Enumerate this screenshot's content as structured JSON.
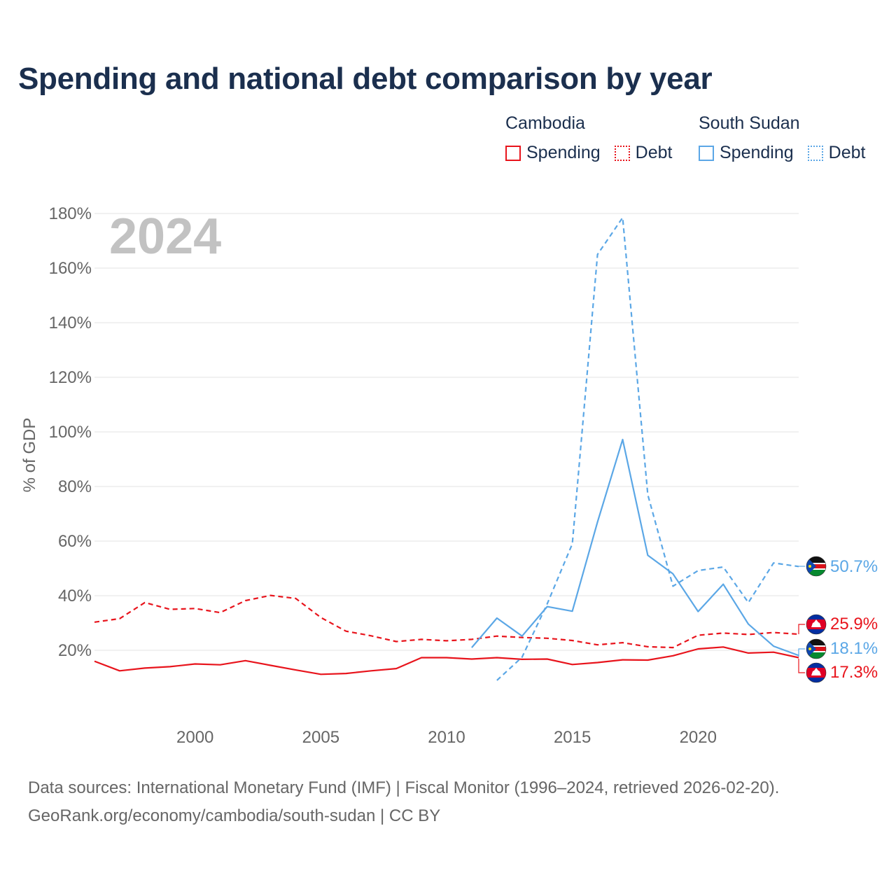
{
  "title": "Spending and national debt comparison by year",
  "legend": {
    "groups": [
      {
        "name": "Cambodia",
        "color": "#e8141c",
        "items": [
          "Spending",
          "Debt"
        ]
      },
      {
        "name": "South Sudan",
        "color": "#5ba7e6",
        "items": [
          "Spending",
          "Debt"
        ]
      }
    ]
  },
  "footer": {
    "sources": "Data sources: International Monetary Fund (IMF) | Fiscal Monitor (1996–2024, retrieved 2026-02-20).",
    "credit": "GeoRank.org/economy/cambodia/south-sudan | CC BY"
  },
  "chart_data": {
    "type": "line",
    "title": "Spending and national debt comparison by year",
    "year_label": "2024",
    "ylabel": "% of GDP",
    "xlabel": "",
    "xlim": [
      1996,
      2024
    ],
    "ylim": [
      0,
      180
    ],
    "x_ticks": [
      2000,
      2005,
      2010,
      2015,
      2020
    ],
    "y_ticks": [
      20,
      40,
      60,
      80,
      100,
      120,
      140,
      160,
      180
    ],
    "y_tick_labels": [
      "20%",
      "40%",
      "60%",
      "80%",
      "100%",
      "120%",
      "140%",
      "160%",
      "180%"
    ],
    "grid": true,
    "series": [
      {
        "name": "Cambodia Spending",
        "country": "Cambodia",
        "metric": "Spending",
        "color": "#e8141c",
        "dash": false,
        "x": [
          1996,
          1997,
          1998,
          1999,
          2000,
          2001,
          2002,
          2003,
          2004,
          2005,
          2006,
          2007,
          2008,
          2009,
          2010,
          2011,
          2012,
          2013,
          2014,
          2015,
          2016,
          2017,
          2018,
          2019,
          2020,
          2021,
          2022,
          2023,
          2024
        ],
        "values": [
          16.0,
          12.5,
          13.5,
          14.0,
          15.0,
          14.7,
          16.2,
          14.5,
          12.8,
          11.2,
          11.5,
          12.5,
          13.3,
          17.3,
          17.3,
          16.8,
          17.3,
          16.7,
          16.8,
          14.8,
          15.5,
          16.5,
          16.4,
          18.0,
          20.5,
          21.2,
          19.0,
          19.3,
          17.3
        ],
        "end_label": "17.3%"
      },
      {
        "name": "Cambodia Debt",
        "country": "Cambodia",
        "metric": "Debt",
        "color": "#e8141c",
        "dash": true,
        "x": [
          1996,
          1997,
          1998,
          1999,
          2000,
          2001,
          2002,
          2003,
          2004,
          2005,
          2006,
          2007,
          2008,
          2009,
          2010,
          2011,
          2012,
          2013,
          2014,
          2015,
          2016,
          2017,
          2018,
          2019,
          2020,
          2021,
          2022,
          2023,
          2024
        ],
        "values": [
          30.3,
          31.6,
          37.5,
          35.0,
          35.3,
          33.8,
          38.2,
          40.1,
          39.0,
          32.0,
          27.0,
          25.3,
          23.2,
          24.0,
          23.5,
          24.0,
          25.2,
          24.7,
          24.4,
          23.6,
          22.0,
          22.8,
          21.3,
          21.0,
          25.5,
          26.3,
          25.8,
          26.5,
          25.9
        ],
        "end_label": "25.9%"
      },
      {
        "name": "South Sudan Spending",
        "country": "South Sudan",
        "metric": "Spending",
        "color": "#5ba7e6",
        "dash": false,
        "x": [
          2011,
          2012,
          2013,
          2014,
          2015,
          2016,
          2017,
          2018,
          2019,
          2020,
          2021,
          2022,
          2023,
          2024
        ],
        "values": [
          21.0,
          31.8,
          25.2,
          36.0,
          34.3,
          67.0,
          97.2,
          54.8,
          48.0,
          34.2,
          44.2,
          29.6,
          21.5,
          18.1
        ],
        "end_label": "18.1%"
      },
      {
        "name": "South Sudan Debt",
        "country": "South Sudan",
        "metric": "Debt",
        "color": "#5ba7e6",
        "dash": true,
        "x": [
          2012,
          2013,
          2014,
          2015,
          2016,
          2017,
          2018,
          2019,
          2020,
          2021,
          2022,
          2023,
          2024
        ],
        "values": [
          9.0,
          17.5,
          37.0,
          59.0,
          165.0,
          178.5,
          77.0,
          43.5,
          49.2,
          50.5,
          37.5,
          52.0,
          50.7
        ],
        "end_label": "50.7%"
      }
    ]
  }
}
